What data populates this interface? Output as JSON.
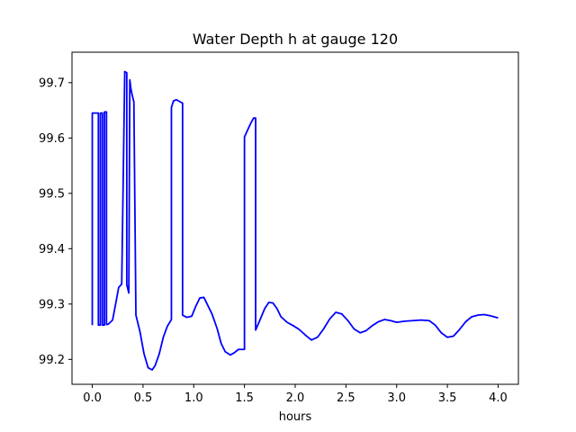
{
  "chart_data": {
    "type": "line",
    "title": "Water Depth h at gauge 120",
    "xlabel": "hours",
    "ylabel": "",
    "xlim": [
      -0.2,
      4.2
    ],
    "ylim": [
      99.155,
      99.755
    ],
    "x_ticks": [
      0.0,
      0.5,
      1.0,
      1.5,
      2.0,
      2.5,
      3.0,
      3.5,
      4.0
    ],
    "x_tick_labels": [
      "0.0",
      "0.5",
      "1.0",
      "1.5",
      "2.0",
      "2.5",
      "3.0",
      "3.5",
      "4.0"
    ],
    "y_ticks": [
      99.2,
      99.3,
      99.4,
      99.5,
      99.6,
      99.7
    ],
    "y_tick_labels": [
      "99.2",
      "99.3",
      "99.4",
      "99.5",
      "99.6",
      "99.7"
    ],
    "grid": false,
    "legend": "none",
    "series": [
      {
        "color": "#0000ff",
        "x": [
          0.0,
          0.0,
          0.06,
          0.06,
          0.08,
          0.08,
          0.1,
          0.1,
          0.12,
          0.12,
          0.14,
          0.14,
          0.16,
          0.2,
          0.23,
          0.26,
          0.29,
          0.32,
          0.34,
          0.34,
          0.36,
          0.37,
          0.38,
          0.38,
          0.39,
          0.41,
          0.43,
          0.43,
          0.47,
          0.51,
          0.55,
          0.59,
          0.62,
          0.66,
          0.7,
          0.74,
          0.78,
          0.78,
          0.8,
          0.83,
          0.86,
          0.89,
          0.89,
          0.93,
          0.98,
          1.02,
          1.06,
          1.1,
          1.14,
          1.18,
          1.23,
          1.27,
          1.31,
          1.36,
          1.4,
          1.44,
          1.48,
          1.5,
          1.5,
          1.53,
          1.56,
          1.59,
          1.61,
          1.61,
          1.65,
          1.7,
          1.74,
          1.78,
          1.82,
          1.86,
          1.92,
          1.98,
          2.04,
          2.1,
          2.16,
          2.22,
          2.28,
          2.34,
          2.4,
          2.46,
          2.52,
          2.58,
          2.64,
          2.7,
          2.76,
          2.82,
          2.88,
          2.94,
          3.0,
          3.08,
          3.16,
          3.24,
          3.32,
          3.38,
          3.44,
          3.5,
          3.56,
          3.62,
          3.68,
          3.74,
          3.8,
          3.86,
          3.92,
          4.0
        ],
        "y": [
          99.262,
          99.645,
          99.645,
          99.262,
          99.262,
          99.645,
          99.645,
          99.262,
          99.262,
          99.647,
          99.647,
          99.263,
          99.264,
          99.271,
          99.3,
          99.33,
          99.336,
          99.72,
          99.718,
          99.335,
          99.32,
          99.705,
          99.69,
          99.69,
          99.68,
          99.665,
          99.28,
          99.28,
          99.25,
          99.21,
          99.185,
          99.181,
          99.189,
          99.21,
          99.24,
          99.26,
          99.272,
          99.655,
          99.667,
          99.669,
          99.666,
          99.663,
          99.28,
          99.276,
          99.278,
          99.296,
          99.311,
          99.312,
          99.297,
          99.282,
          99.256,
          99.229,
          99.214,
          99.208,
          99.212,
          99.218,
          99.218,
          99.218,
          99.602,
          99.614,
          99.626,
          99.636,
          99.636,
          99.253,
          99.27,
          99.292,
          99.303,
          99.302,
          99.292,
          99.277,
          99.267,
          99.261,
          99.254,
          99.244,
          99.235,
          99.24,
          99.255,
          99.273,
          99.285,
          99.282,
          99.27,
          99.255,
          99.248,
          99.252,
          99.261,
          99.268,
          99.272,
          99.27,
          99.267,
          99.269,
          99.27,
          99.271,
          99.27,
          99.262,
          99.248,
          99.24,
          99.242,
          99.254,
          99.268,
          99.277,
          99.28,
          99.281,
          99.279,
          99.275
        ]
      }
    ]
  }
}
